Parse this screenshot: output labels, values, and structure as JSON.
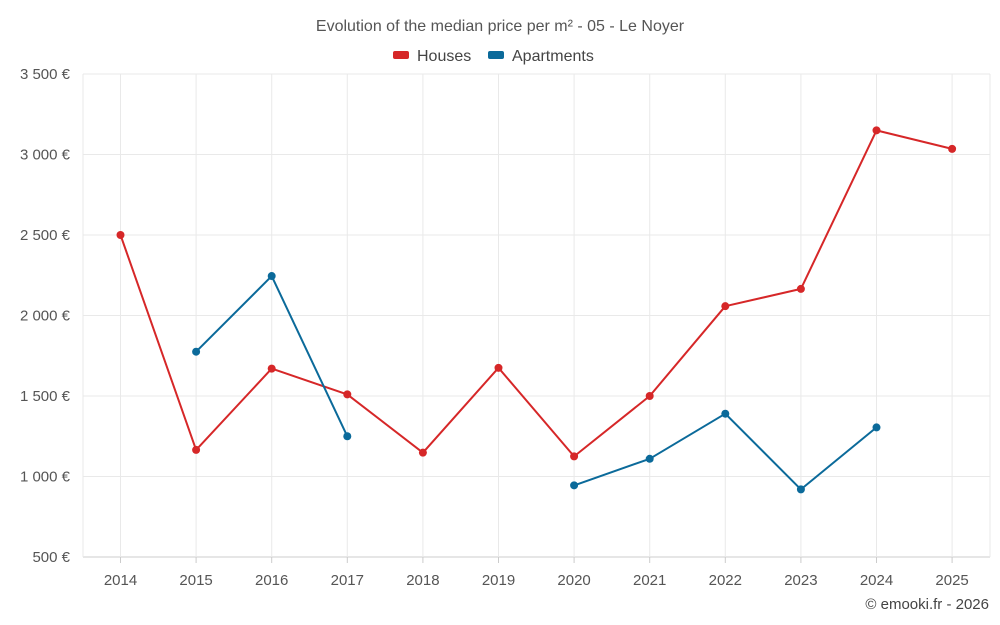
{
  "chart_data": {
    "type": "line",
    "title": "Evolution of the median price per m² - 05 - Le Noyer",
    "categories": [
      "2014",
      "2015",
      "2016",
      "2017",
      "2018",
      "2019",
      "2020",
      "2021",
      "2022",
      "2023",
      "2024",
      "2025"
    ],
    "ylim": [
      500,
      3500
    ],
    "yticks": [
      500,
      1000,
      1500,
      2000,
      2500,
      3000,
      3500
    ],
    "ytick_labels": [
      "500 €",
      "1 000 €",
      "1 500 €",
      "2 000 €",
      "2 500 €",
      "3 000 €",
      "3 500 €"
    ],
    "grid": true,
    "legend_position": "top-center",
    "series": [
      {
        "name": "Houses",
        "color": "#d62728",
        "values": [
          2500,
          1165,
          1670,
          1510,
          1148,
          1675,
          1125,
          1500,
          2058,
          2165,
          3150,
          3035
        ]
      },
      {
        "name": "Apartments",
        "color": "#0b6a9a",
        "values": [
          null,
          1775,
          2245,
          1250,
          null,
          null,
          945,
          1110,
          1390,
          920,
          1305,
          null
        ]
      }
    ]
  },
  "credit": "© emooki.fr - 2026"
}
